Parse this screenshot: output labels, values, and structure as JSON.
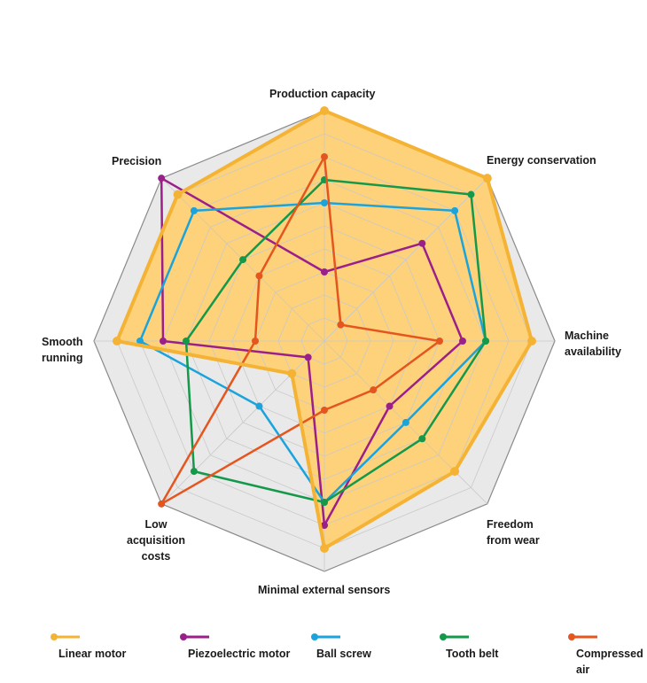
{
  "chart_data": {
    "type": "radar",
    "axes": [
      "Production capacity",
      "Energy conservation",
      "Machine\navailability",
      "Freedom\nfrom wear",
      "Minimal external sensors",
      "Low\nacquisition\ncosts",
      "Smooth\nrunning",
      "Precision"
    ],
    "rlim": [
      0,
      10
    ],
    "grid": true,
    "grid_rings": 10,
    "legend_position": "bottom",
    "series": [
      {
        "name": "Linear motor",
        "color": "#f5b335",
        "fill": "#fdd27a",
        "values": [
          10,
          10,
          9,
          8,
          9,
          2,
          9,
          9
        ]
      },
      {
        "name": "Piezoelectric motor",
        "color": "#9b1f8a",
        "values": [
          3,
          6,
          6,
          4,
          8,
          1,
          7,
          10
        ]
      },
      {
        "name": "Ball screw",
        "color": "#1ba3dc",
        "values": [
          6,
          8,
          7,
          5,
          7,
          4,
          8,
          8
        ]
      },
      {
        "name": "Tooth belt",
        "color": "#14984a",
        "values": [
          7,
          9,
          7,
          6,
          7,
          8,
          6,
          5
        ]
      },
      {
        "name": "Compressed\nair",
        "color": "#e5561f",
        "values": [
          8,
          1,
          5,
          3,
          3,
          10,
          3,
          4
        ]
      }
    ]
  }
}
